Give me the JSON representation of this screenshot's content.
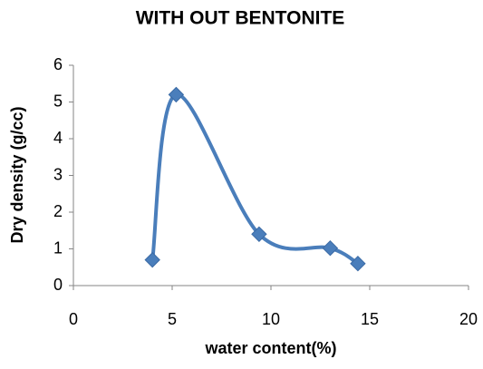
{
  "chart_data": {
    "type": "scatter",
    "smooth": true,
    "markers": true,
    "title": "WITH OUT BENTONITE",
    "x_label": "water content(%)",
    "y_label": "Dry density (g/cc)",
    "series": [
      {
        "name": "Dry density",
        "color": "#4a7ebb",
        "x": [
          4,
          5.2,
          9.4,
          13,
          14.4
        ],
        "values": [
          0.7,
          5.2,
          1.4,
          1.02,
          0.6
        ]
      }
    ],
    "xlim": [
      0,
      20
    ],
    "xticks": [
      0,
      5,
      10,
      15,
      20
    ],
    "ylim": [
      0,
      6
    ],
    "yticks": [
      0,
      1,
      2,
      3,
      4,
      5,
      6
    ],
    "grid": false
  }
}
